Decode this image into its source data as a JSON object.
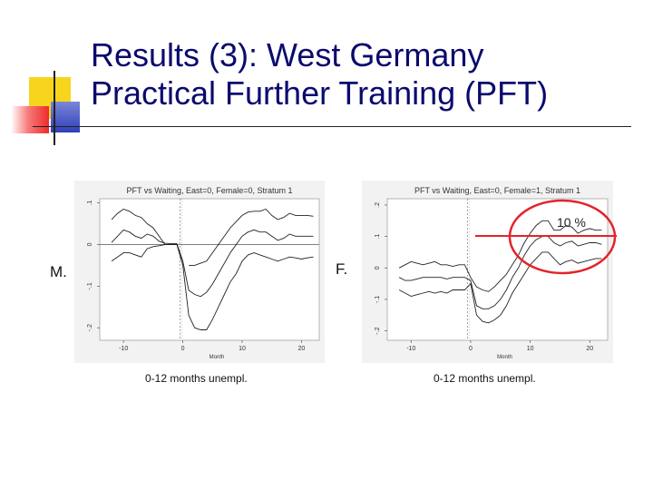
{
  "slide": {
    "title_line1": "Results (3): West Germany",
    "title_line2": "Practical Further Training (PFT)"
  },
  "labels": {
    "left_group": "M.",
    "right_group": "F.",
    "left_caption": "0-12 months unempl.",
    "right_caption": "0-12 months unempl.",
    "annotation": "10 %"
  },
  "colors": {
    "title": "#0a0a6e",
    "deco_yellow": "#f7d51d",
    "deco_red": "#ee2b2b",
    "deco_blue": "#2f3fb8",
    "annotation_red": "#e3242b"
  },
  "chart_data": [
    {
      "type": "line",
      "title": "PFT vs Waiting, East=0, Female=0, Stratum 1",
      "xlabel": "Month",
      "ylabel": "",
      "xlim": [
        -14,
        23
      ],
      "ylim": [
        -0.23,
        0.11
      ],
      "xticks": [
        -10,
        0,
        10,
        20
      ],
      "yticks": [
        0.1,
        0,
        -0.1,
        -0.2
      ],
      "ytick_labels": [
        ".1",
        "0",
        "-.1",
        "-.2"
      ],
      "hline": 0,
      "vline": -0.5,
      "grid": false,
      "legend": "none",
      "series": [
        {
          "role": "upper",
          "x": [
            -12,
            -11,
            -10,
            -9,
            -8,
            -7,
            -6,
            -5,
            -4,
            -3,
            -2,
            -1,
            0,
            1,
            2,
            3,
            4,
            5,
            6,
            7,
            8,
            9,
            10,
            11,
            12,
            13,
            14,
            15,
            16,
            17,
            18,
            19,
            20,
            21,
            22
          ],
          "y": [
            0.06,
            0.075,
            0.085,
            0.08,
            0.07,
            0.065,
            0.05,
            0.04,
            0.02,
            0.0,
            0.0,
            0.0,
            null,
            -0.05,
            -0.05,
            -0.045,
            -0.04,
            -0.02,
            0.0,
            0.02,
            0.04,
            0.055,
            0.07,
            0.078,
            0.08,
            0.08,
            0.085,
            0.07,
            0.06,
            0.065,
            0.075,
            0.07,
            0.07,
            0.07,
            0.068
          ]
        },
        {
          "role": "estimate",
          "x": [
            -12,
            -11,
            -10,
            -9,
            -8,
            -7,
            -6,
            -5,
            -4,
            -3,
            -2,
            -1,
            0,
            1,
            2,
            3,
            4,
            5,
            6,
            7,
            8,
            9,
            10,
            11,
            12,
            13,
            14,
            15,
            16,
            17,
            18,
            19,
            20,
            21,
            22
          ],
          "y": [
            0.005,
            0.02,
            0.035,
            0.03,
            0.02,
            0.015,
            0.025,
            0.02,
            0.008,
            0.003,
            0.002,
            0.002,
            -0.04,
            -0.11,
            -0.12,
            -0.125,
            -0.115,
            -0.095,
            -0.07,
            -0.045,
            -0.02,
            0.0,
            0.02,
            0.03,
            0.035,
            0.03,
            0.03,
            0.02,
            0.01,
            0.015,
            0.025,
            0.02,
            0.02,
            0.02,
            0.02
          ]
        },
        {
          "role": "lower",
          "x": [
            -12,
            -11,
            -10,
            -9,
            -8,
            -7,
            -6,
            -5,
            -4,
            -3,
            -2,
            -1,
            0,
            1,
            2,
            3,
            4,
            5,
            6,
            7,
            8,
            9,
            10,
            11,
            12,
            13,
            14,
            15,
            16,
            17,
            18,
            19,
            20,
            21,
            22
          ],
          "y": [
            -0.04,
            -0.03,
            -0.02,
            -0.02,
            -0.025,
            -0.03,
            -0.01,
            -0.005,
            -0.003,
            0.0,
            0.0,
            0.0,
            -0.05,
            -0.17,
            -0.2,
            -0.205,
            -0.205,
            -0.18,
            -0.15,
            -0.12,
            -0.09,
            -0.07,
            -0.04,
            -0.025,
            -0.02,
            -0.025,
            -0.03,
            -0.035,
            -0.04,
            -0.035,
            -0.03,
            -0.032,
            -0.035,
            -0.032,
            -0.03
          ]
        }
      ]
    },
    {
      "type": "line",
      "title": "PFT vs Waiting, East=0, Female=1, Stratum 1",
      "xlabel": "Month",
      "ylabel": "",
      "xlim": [
        -14,
        23
      ],
      "ylim": [
        -0.23,
        0.22
      ],
      "xticks": [
        -10,
        0,
        10,
        20
      ],
      "yticks": [
        0.2,
        0.1,
        0,
        -0.1,
        -0.2
      ],
      "ytick_labels": [
        ".2",
        ".1",
        "0",
        "-.1",
        "-.2"
      ],
      "hline": null,
      "vline": -0.5,
      "grid": false,
      "legend": "none",
      "series": [
        {
          "role": "upper",
          "x": [
            -12,
            -11,
            -10,
            -9,
            -8,
            -7,
            -6,
            -5,
            -4,
            -3,
            -2,
            -1,
            0,
            1,
            2,
            3,
            4,
            5,
            6,
            7,
            8,
            9,
            10,
            11,
            12,
            13,
            14,
            15,
            16,
            17,
            18,
            19,
            20,
            21,
            22
          ],
          "y": [
            0.0,
            0.01,
            0.02,
            0.015,
            0.01,
            0.015,
            0.02,
            0.01,
            0.01,
            0.005,
            0.01,
            0.01,
            -0.03,
            -0.06,
            -0.07,
            -0.075,
            -0.06,
            -0.04,
            -0.02,
            0.01,
            0.04,
            0.08,
            0.11,
            0.135,
            0.15,
            0.15,
            0.12,
            0.12,
            0.135,
            0.13,
            0.11,
            0.12,
            0.125,
            0.12,
            0.12
          ]
        },
        {
          "role": "estimate",
          "x": [
            -12,
            -11,
            -10,
            -9,
            -8,
            -7,
            -6,
            -5,
            -4,
            -3,
            -2,
            -1,
            0,
            1,
            2,
            3,
            4,
            5,
            6,
            7,
            8,
            9,
            10,
            11,
            12,
            13,
            14,
            15,
            16,
            17,
            18,
            19,
            20,
            21,
            22
          ],
          "y": [
            -0.03,
            -0.04,
            -0.04,
            -0.035,
            -0.03,
            -0.03,
            -0.03,
            -0.03,
            -0.035,
            -0.03,
            -0.03,
            -0.03,
            -0.04,
            -0.12,
            -0.13,
            -0.13,
            -0.12,
            -0.1,
            -0.07,
            -0.03,
            0.0,
            0.04,
            0.07,
            0.09,
            0.1,
            0.1,
            0.08,
            0.07,
            0.08,
            0.085,
            0.07,
            0.075,
            0.08,
            0.08,
            0.075
          ]
        },
        {
          "role": "lower",
          "x": [
            -12,
            -11,
            -10,
            -9,
            -8,
            -7,
            -6,
            -5,
            -4,
            -3,
            -2,
            -1,
            0,
            1,
            2,
            3,
            4,
            5,
            6,
            7,
            8,
            9,
            10,
            11,
            12,
            13,
            14,
            15,
            16,
            17,
            18,
            19,
            20,
            21,
            22
          ],
          "y": [
            -0.07,
            -0.08,
            -0.09,
            -0.085,
            -0.08,
            -0.075,
            -0.08,
            -0.075,
            -0.08,
            -0.07,
            -0.07,
            -0.07,
            -0.05,
            -0.15,
            -0.17,
            -0.175,
            -0.165,
            -0.15,
            -0.12,
            -0.08,
            -0.05,
            -0.02,
            0.01,
            0.03,
            0.05,
            0.05,
            0.03,
            0.01,
            0.02,
            0.025,
            0.015,
            0.02,
            0.025,
            0.03,
            0.03
          ]
        }
      ]
    }
  ]
}
